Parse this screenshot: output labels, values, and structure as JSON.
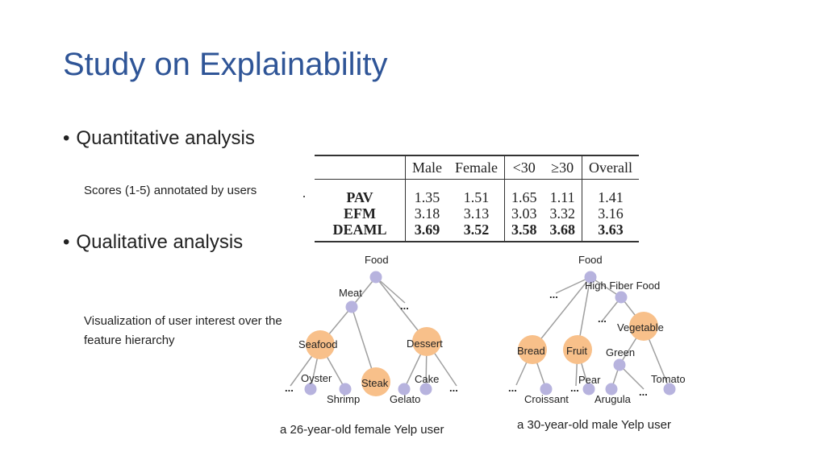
{
  "slide": {
    "title": "Study on Explainability",
    "bullets": [
      "Quantitative analysis",
      "Qualitative analysis"
    ],
    "scores_note": "Scores (1-5) annotated by users",
    "viz_note": "Visualization of user interest over the feature hierarchy",
    "captions": [
      "a 26-year-old female Yelp user",
      "a 30-year-old male Yelp user"
    ]
  },
  "table": {
    "headers": [
      "",
      "Male",
      "Female",
      "<30",
      "≥30",
      "Overall"
    ],
    "rows": [
      {
        "method": "PAV",
        "values": [
          "1.35",
          "1.51",
          "1.65",
          "1.11",
          "1.41"
        ],
        "bold": false
      },
      {
        "method": "EFM",
        "values": [
          "3.18",
          "3.13",
          "3.03",
          "3.32",
          "3.16"
        ],
        "bold": false
      },
      {
        "method": "DEAML",
        "values": [
          "3.69",
          "3.52",
          "3.58",
          "3.68",
          "3.63"
        ],
        "bold": true
      }
    ]
  },
  "colors": {
    "title": "#2f5597",
    "node_orange": "#f8c08a",
    "node_purple": "#b7b3de",
    "edge": "#9f9f9f"
  },
  "trees": {
    "female": {
      "labels": {
        "food": "Food",
        "meat": "Meat",
        "seafood": "Seafood",
        "dessert": "Dessert",
        "oyster": "Oyster",
        "shrimp": "Shrimp",
        "steak": "Steak",
        "cake": "Cake",
        "gelato": "Gelato"
      },
      "ellipsis": "..."
    },
    "male": {
      "labels": {
        "food": "Food",
        "high_fiber": "High Fiber Food",
        "vegetable": "Vegetable",
        "bread": "Bread",
        "fruit": "Fruit",
        "green": "Green",
        "tomato": "Tomato",
        "croissant": "Croissant",
        "pear": "Pear",
        "arugula": "Arugula"
      },
      "ellipsis": "..."
    }
  }
}
